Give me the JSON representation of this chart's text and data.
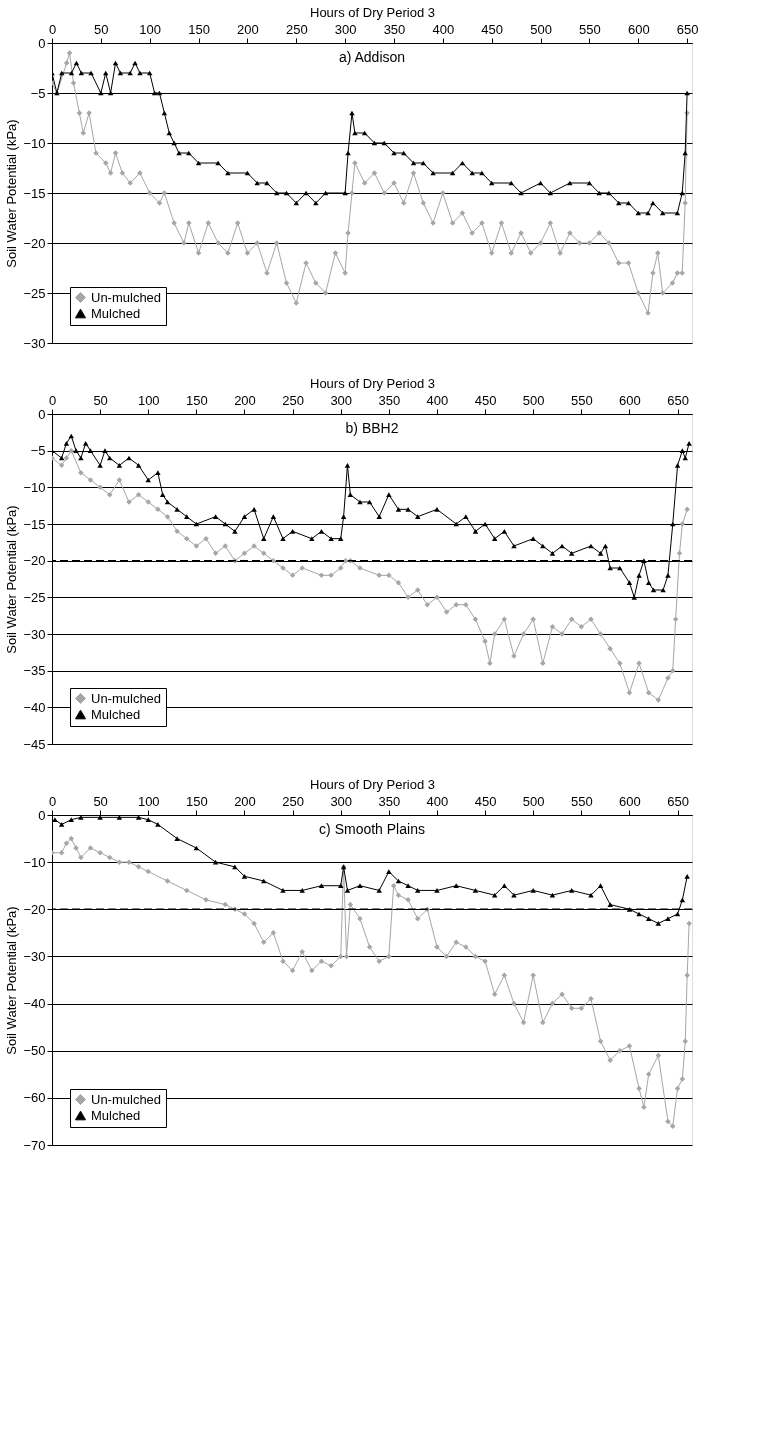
{
  "chart_data": [
    {
      "type": "line",
      "title": "a) Addison",
      "xlabel": "Hours of Dry Period 3",
      "ylabel": "Soil Water Potential (kPa)",
      "xlim": [
        0,
        655
      ],
      "ylim": [
        -30,
        0
      ],
      "xticks": [
        0,
        50,
        100,
        150,
        200,
        250,
        300,
        350,
        400,
        450,
        500,
        550,
        600,
        650
      ],
      "yticks": [
        {
          "value": -30,
          "label": "−30"
        },
        {
          "value": -25,
          "label": "−25"
        },
        {
          "value": -20,
          "label": "−20"
        },
        {
          "value": -15,
          "label": "−15"
        },
        {
          "value": -10,
          "label": "−10"
        },
        {
          "value": -5,
          "label": "−5"
        },
        0
      ],
      "grid": "y",
      "legend": "bottom left",
      "line_style": "solid",
      "series": [
        {
          "name": "Un-mulched",
          "color": "#a6a6a6",
          "marker": "diamond",
          "x": [
            0,
            5,
            15,
            18,
            22,
            28,
            32,
            38,
            45,
            55,
            60,
            65,
            72,
            80,
            90,
            100,
            110,
            115,
            125,
            135,
            140,
            150,
            160,
            170,
            180,
            190,
            200,
            210,
            220,
            230,
            240,
            250,
            260,
            270,
            280,
            290,
            300,
            303,
            307,
            310,
            320,
            330,
            340,
            350,
            360,
            370,
            380,
            390,
            400,
            410,
            420,
            430,
            440,
            450,
            460,
            470,
            480,
            490,
            500,
            510,
            520,
            530,
            540,
            550,
            560,
            570,
            580,
            590,
            600,
            610,
            615,
            620,
            625,
            635,
            640,
            645,
            648,
            650
          ],
          "values": [
            -4,
            -5,
            -2,
            -1,
            -4,
            -7,
            -9,
            -7,
            -11,
            -12,
            -13,
            -11,
            -13,
            -14,
            -13,
            -15,
            -16,
            -15,
            -18,
            -20,
            -18,
            -21,
            -18,
            -20,
            -21,
            -18,
            -21,
            -20,
            -23,
            -20,
            -24,
            -26,
            -22,
            -24,
            -25,
            -21,
            -23,
            -19,
            -15,
            -12,
            -14,
            -13,
            -15,
            -14,
            -16,
            -13,
            -16,
            -18,
            -15,
            -18,
            -17,
            -19,
            -18,
            -21,
            -18,
            -21,
            -19,
            -21,
            -20,
            -18,
            -21,
            -19,
            -20,
            -20,
            -19,
            -20,
            -22,
            -22,
            -25,
            -27,
            -23,
            -21,
            -25,
            -24,
            -23,
            -23,
            -16,
            -7
          ]
        },
        {
          "name": "Mulched",
          "color": "#000000",
          "marker": "triangle",
          "x": [
            0,
            5,
            10,
            20,
            25,
            30,
            40,
            50,
            55,
            60,
            65,
            70,
            80,
            85,
            90,
            100,
            105,
            110,
            115,
            120,
            125,
            130,
            140,
            150,
            170,
            180,
            200,
            210,
            220,
            230,
            240,
            250,
            260,
            270,
            280,
            300,
            303,
            307,
            310,
            320,
            330,
            340,
            350,
            360,
            370,
            380,
            390,
            410,
            420,
            430,
            440,
            450,
            470,
            480,
            500,
            510,
            530,
            550,
            560,
            570,
            580,
            590,
            600,
            610,
            615,
            625,
            640,
            645,
            648,
            650
          ],
          "values": [
            -3,
            -5,
            -3,
            -3,
            -2,
            -3,
            -3,
            -5,
            -3,
            -5,
            -2,
            -3,
            -3,
            -2,
            -3,
            -3,
            -5,
            -5,
            -7,
            -9,
            -10,
            -11,
            -11,
            -12,
            -12,
            -13,
            -13,
            -14,
            -14,
            -15,
            -15,
            -16,
            -15,
            -16,
            -15,
            -15,
            -11,
            -7,
            -9,
            -9,
            -10,
            -10,
            -11,
            -11,
            -12,
            -12,
            -13,
            -13,
            -12,
            -13,
            -13,
            -14,
            -14,
            -15,
            -14,
            -15,
            -14,
            -14,
            -15,
            -15,
            -16,
            -16,
            -17,
            -17,
            -16,
            -17,
            -17,
            -15,
            -11,
            -5
          ]
        }
      ]
    },
    {
      "type": "line",
      "title": "b) BBH2",
      "xlabel": "Hours of Dry Period 3",
      "ylabel": "Soil Water Potential (kPa)",
      "xlim": [
        0,
        665
      ],
      "ylim": [
        -45,
        0
      ],
      "xticks": [
        0,
        50,
        100,
        150,
        200,
        250,
        300,
        350,
        400,
        450,
        500,
        550,
        600,
        650
      ],
      "yticks": [
        {
          "value": -45,
          "label": "−45"
        },
        {
          "value": -40,
          "label": "−40"
        },
        {
          "value": -35,
          "label": "−35"
        },
        {
          "value": -30,
          "label": "−30"
        },
        {
          "value": -25,
          "label": "−25"
        },
        {
          "value": -20,
          "label": "−20"
        },
        {
          "value": -15,
          "label": "−15"
        },
        {
          "value": -10,
          "label": "−10"
        },
        {
          "value": -5,
          "label": "−5"
        },
        0
      ],
      "grid": "y",
      "legend": "bottom left",
      "line_style": "solid",
      "ref_lines": [
        {
          "axis": "y",
          "value": -20,
          "color": "#000000",
          "line_style": "dashed"
        }
      ],
      "series": [
        {
          "name": "Un-mulched",
          "color": "#a6a6a6",
          "marker": "diamond",
          "x": [
            0,
            10,
            15,
            20,
            30,
            40,
            50,
            60,
            70,
            80,
            90,
            100,
            110,
            120,
            130,
            140,
            150,
            160,
            170,
            180,
            190,
            200,
            210,
            220,
            230,
            240,
            250,
            260,
            280,
            290,
            300,
            305,
            310,
            320,
            340,
            350,
            360,
            370,
            380,
            390,
            400,
            410,
            420,
            430,
            440,
            450,
            455,
            460,
            470,
            480,
            490,
            500,
            510,
            520,
            530,
            540,
            550,
            560,
            570,
            580,
            590,
            600,
            610,
            620,
            630,
            640,
            645,
            648,
            652,
            655,
            660
          ],
          "values": [
            -6,
            -7,
            -6,
            -5,
            -8,
            -9,
            -10,
            -11,
            -9,
            -12,
            -11,
            -12,
            -13,
            -14,
            -16,
            -17,
            -18,
            -17,
            -19,
            -18,
            -20,
            -19,
            -18,
            -19,
            -20,
            -21,
            -22,
            -21,
            -22,
            -22,
            -21,
            -20,
            -20,
            -21,
            -22,
            -22,
            -23,
            -25,
            -24,
            -26,
            -25,
            -27,
            -26,
            -26,
            -28,
            -31,
            -34,
            -30,
            -28,
            -33,
            -30,
            -28,
            -34,
            -29,
            -30,
            -28,
            -29,
            -28,
            -30,
            -32,
            -34,
            -38,
            -34,
            -38,
            -39,
            -36,
            -35,
            -28,
            -19,
            -15,
            -13
          ]
        },
        {
          "name": "Mulched",
          "color": "#000000",
          "marker": "triangle",
          "x": [
            0,
            10,
            15,
            20,
            25,
            30,
            35,
            40,
            50,
            55,
            60,
            70,
            80,
            90,
            100,
            110,
            115,
            120,
            130,
            140,
            150,
            170,
            180,
            190,
            200,
            210,
            220,
            230,
            240,
            250,
            270,
            280,
            290,
            300,
            303,
            307,
            310,
            320,
            330,
            340,
            350,
            360,
            370,
            380,
            400,
            420,
            430,
            440,
            450,
            460,
            470,
            480,
            500,
            510,
            520,
            530,
            540,
            560,
            570,
            575,
            580,
            590,
            600,
            605,
            610,
            615,
            620,
            625,
            635,
            640,
            645,
            650,
            655,
            658,
            662
          ],
          "values": [
            -5,
            -6,
            -4,
            -3,
            -5,
            -6,
            -4,
            -5,
            -7,
            -5,
            -6,
            -7,
            -6,
            -7,
            -9,
            -8,
            -11,
            -12,
            -13,
            -14,
            -15,
            -14,
            -15,
            -16,
            -14,
            -13,
            -17,
            -14,
            -17,
            -16,
            -17,
            -16,
            -17,
            -17,
            -14,
            -7,
            -11,
            -12,
            -12,
            -14,
            -11,
            -13,
            -13,
            -14,
            -13,
            -15,
            -14,
            -16,
            -15,
            -17,
            -16,
            -18,
            -17,
            -18,
            -19,
            -18,
            -19,
            -18,
            -19,
            -18,
            -21,
            -21,
            -23,
            -25,
            -22,
            -20,
            -23,
            -24,
            -24,
            -22,
            -15,
            -7,
            -5,
            -6,
            -4
          ]
        }
      ]
    },
    {
      "type": "line",
      "title": "c) Smooth Plains",
      "xlabel": "Hours of Dry Period 3",
      "ylabel": "Soil Water Potential (kPa)",
      "xlim": [
        0,
        665
      ],
      "ylim": [
        -70,
        0
      ],
      "xticks": [
        0,
        50,
        100,
        150,
        200,
        250,
        300,
        350,
        400,
        450,
        500,
        550,
        600,
        650
      ],
      "yticks": [
        {
          "value": -70,
          "label": "−70"
        },
        {
          "value": -60,
          "label": "−60"
        },
        {
          "value": -50,
          "label": "−50"
        },
        {
          "value": -40,
          "label": "−40"
        },
        {
          "value": -30,
          "label": "−30"
        },
        {
          "value": -20,
          "label": "−20"
        },
        {
          "value": -10,
          "label": "−10"
        },
        0
      ],
      "grid": "y",
      "legend": "bottom left",
      "line_style": "solid",
      "ref_lines": [
        {
          "axis": "y",
          "value": -20,
          "color": "#000000",
          "line_style": "dashed"
        }
      ],
      "series": [
        {
          "name": "Un-mulched",
          "color": "#a6a6a6",
          "marker": "diamond",
          "x": [
            0,
            10,
            15,
            20,
            25,
            30,
            40,
            50,
            60,
            70,
            80,
            90,
            100,
            120,
            140,
            160,
            180,
            190,
            200,
            210,
            220,
            230,
            240,
            250,
            260,
            270,
            280,
            290,
            300,
            303,
            306,
            310,
            320,
            330,
            340,
            350,
            355,
            360,
            370,
            380,
            390,
            400,
            410,
            420,
            430,
            440,
            450,
            460,
            470,
            480,
            490,
            500,
            510,
            520,
            530,
            540,
            550,
            560,
            570,
            580,
            590,
            600,
            610,
            615,
            620,
            630,
            640,
            645,
            650,
            655,
            658,
            660,
            662
          ],
          "values": [
            -8,
            -8,
            -6,
            -5,
            -7,
            -9,
            -7,
            -8,
            -9,
            -10,
            -10,
            -11,
            -12,
            -14,
            -16,
            -18,
            -19,
            -20,
            -21,
            -23,
            -27,
            -25,
            -31,
            -33,
            -29,
            -33,
            -31,
            -32,
            -30,
            -11,
            -30,
            -19,
            -22,
            -28,
            -31,
            -30,
            -15,
            -17,
            -18,
            -22,
            -20,
            -28,
            -30,
            -27,
            -28,
            -30,
            -31,
            -38,
            -34,
            -40,
            -44,
            -34,
            -44,
            -40,
            -38,
            -41,
            -41,
            -39,
            -48,
            -52,
            -50,
            -49,
            -58,
            -62,
            -55,
            -51,
            -65,
            -66,
            -58,
            -56,
            -48,
            -34,
            -23
          ]
        },
        {
          "name": "Mulched",
          "color": "#000000",
          "marker": "triangle",
          "x": [
            3,
            10,
            20,
            30,
            50,
            70,
            90,
            100,
            110,
            130,
            150,
            170,
            190,
            200,
            220,
            240,
            260,
            280,
            300,
            303,
            307,
            320,
            340,
            350,
            360,
            370,
            380,
            400,
            420,
            440,
            460,
            470,
            480,
            500,
            520,
            540,
            560,
            570,
            580,
            600,
            610,
            620,
            630,
            640,
            650,
            655,
            660
          ],
          "values": [
            -1,
            -2,
            -1,
            -0.5,
            -0.5,
            -0.5,
            -0.5,
            -1,
            -2,
            -5,
            -7,
            -10,
            -11,
            -13,
            -14,
            -16,
            -16,
            -15,
            -15,
            -11,
            -16,
            -15,
            -16,
            -12,
            -14,
            -15,
            -16,
            -16,
            -15,
            -16,
            -17,
            -15,
            -17,
            -16,
            -17,
            -16,
            -17,
            -15,
            -19,
            -20,
            -21,
            -22,
            -23,
            -22,
            -21,
            -18,
            -13
          ]
        }
      ]
    }
  ]
}
